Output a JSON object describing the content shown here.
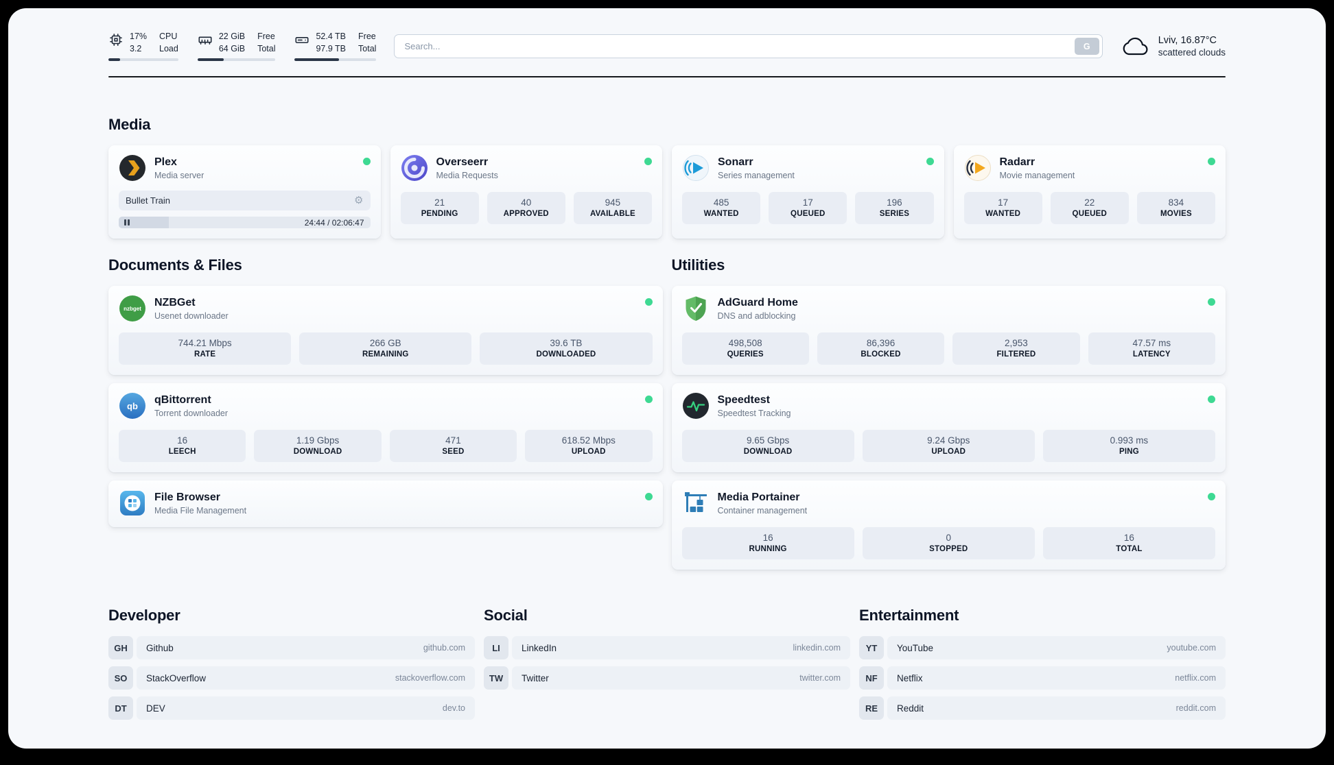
{
  "colors": {
    "status_online": "#3ed993",
    "tile_bg": "#e9edf4",
    "plex_yellow": "#e8a11c",
    "page_bg": "#f6f8fb"
  },
  "header": {
    "stats": [
      {
        "value_top": "17%",
        "label_top": "CPU",
        "value_bottom": "3.2",
        "label_bottom": "Load",
        "progress": 17
      },
      {
        "value_top": "22 GiB",
        "label_top": "Free",
        "value_bottom": "64 GiB",
        "label_bottom": "Total",
        "progress": 34
      },
      {
        "value_top": "52.4 TB",
        "label_top": "Free",
        "value_bottom": "97.9 TB",
        "label_bottom": "Total",
        "progress": 54
      }
    ],
    "search": {
      "placeholder": "Search...",
      "button_label": "G"
    },
    "weather": {
      "location_temp": "Lviv, 16.87°C",
      "condition": "scattered clouds"
    }
  },
  "media": {
    "title": "Media",
    "plex": {
      "name": "Plex",
      "subtitle": "Media server",
      "status": "online",
      "now_playing": "Bullet Train",
      "time": "24:44 / 02:06:47",
      "progress": 20
    },
    "overseerr": {
      "name": "Overseerr",
      "subtitle": "Media Requests",
      "status": "online",
      "stats": [
        {
          "value": "21",
          "label": "PENDING"
        },
        {
          "value": "40",
          "label": "APPROVED"
        },
        {
          "value": "945",
          "label": "AVAILABLE"
        }
      ]
    },
    "sonarr": {
      "name": "Sonarr",
      "subtitle": "Series management",
      "status": "online",
      "stats": [
        {
          "value": "485",
          "label": "WANTED"
        },
        {
          "value": "17",
          "label": "QUEUED"
        },
        {
          "value": "196",
          "label": "SERIES"
        }
      ]
    },
    "radarr": {
      "name": "Radarr",
      "subtitle": "Movie management",
      "status": "online",
      "stats": [
        {
          "value": "17",
          "label": "WANTED"
        },
        {
          "value": "22",
          "label": "QUEUED"
        },
        {
          "value": "834",
          "label": "MOVIES"
        }
      ]
    }
  },
  "documents": {
    "title": "Documents & Files",
    "nzbget": {
      "name": "NZBGet",
      "subtitle": "Usenet downloader",
      "status": "online",
      "icon_text": "nzbget",
      "stats": [
        {
          "value": "744.21 Mbps",
          "label": "RATE"
        },
        {
          "value": "266 GB",
          "label": "REMAINING"
        },
        {
          "value": "39.6 TB",
          "label": "DOWNLOADED"
        }
      ]
    },
    "qbittorrent": {
      "name": "qBittorrent",
      "subtitle": "Torrent downloader",
      "status": "online",
      "icon_text": "qb",
      "stats": [
        {
          "value": "16",
          "label": "LEECH"
        },
        {
          "value": "1.19 Gbps",
          "label": "DOWNLOAD"
        },
        {
          "value": "471",
          "label": "SEED"
        },
        {
          "value": "618.52 Mbps",
          "label": "UPLOAD"
        }
      ]
    },
    "filebrowser": {
      "name": "File Browser",
      "subtitle": "Media File Management",
      "status": "online"
    }
  },
  "utilities": {
    "title": "Utilities",
    "adguard": {
      "name": "AdGuard Home",
      "subtitle": "DNS and adblocking",
      "status": "online",
      "stats": [
        {
          "value": "498,508",
          "label": "QUERIES"
        },
        {
          "value": "86,396",
          "label": "BLOCKED"
        },
        {
          "value": "2,953",
          "label": "FILTERED"
        },
        {
          "value": "47.57 ms",
          "label": "LATENCY"
        }
      ]
    },
    "speedtest": {
      "name": "Speedtest",
      "subtitle": "Speedtest Tracking",
      "status": "online",
      "stats": [
        {
          "value": "9.65 Gbps",
          "label": "DOWNLOAD"
        },
        {
          "value": "9.24 Gbps",
          "label": "UPLOAD"
        },
        {
          "value": "0.993 ms",
          "label": "PING"
        }
      ]
    },
    "portainer": {
      "name": "Media Portainer",
      "subtitle": "Container management",
      "status": "online",
      "stats": [
        {
          "value": "16",
          "label": "RUNNING"
        },
        {
          "value": "0",
          "label": "STOPPED"
        },
        {
          "value": "16",
          "label": "TOTAL"
        }
      ]
    }
  },
  "bookmarks": [
    {
      "title": "Developer",
      "items": [
        {
          "abbr": "GH",
          "name": "Github",
          "url": "github.com"
        },
        {
          "abbr": "SO",
          "name": "StackOverflow",
          "url": "stackoverflow.com"
        },
        {
          "abbr": "DT",
          "name": "DEV",
          "url": "dev.to"
        }
      ]
    },
    {
      "title": "Social",
      "items": [
        {
          "abbr": "LI",
          "name": "LinkedIn",
          "url": "linkedin.com"
        },
        {
          "abbr": "TW",
          "name": "Twitter",
          "url": "twitter.com"
        }
      ]
    },
    {
      "title": "Entertainment",
      "items": [
        {
          "abbr": "YT",
          "name": "YouTube",
          "url": "youtube.com"
        },
        {
          "abbr": "NF",
          "name": "Netflix",
          "url": "netflix.com"
        },
        {
          "abbr": "RE",
          "name": "Reddit",
          "url": "reddit.com"
        }
      ]
    }
  ]
}
